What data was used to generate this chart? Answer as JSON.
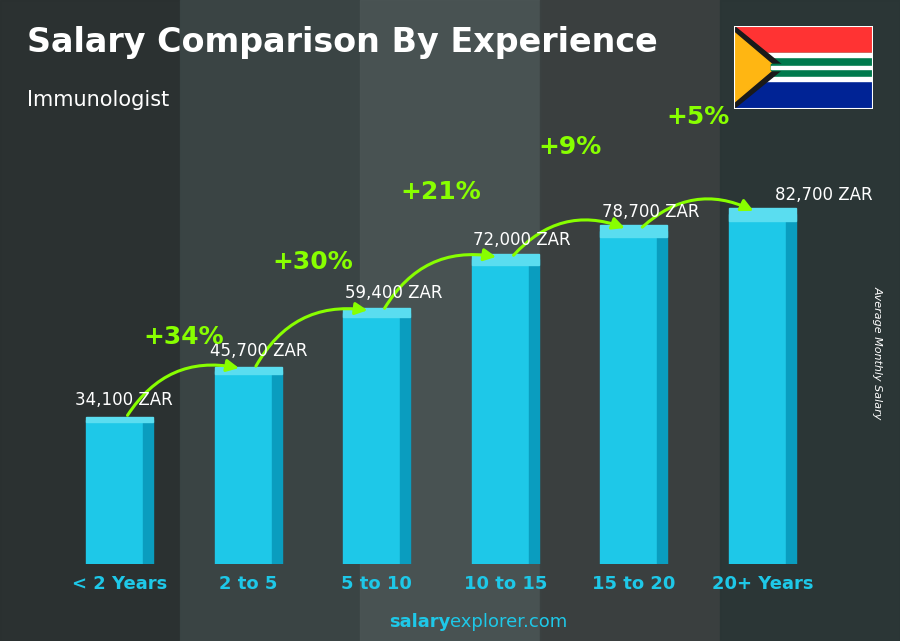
{
  "title": "Salary Comparison By Experience",
  "subtitle": "Immunologist",
  "categories": [
    "< 2 Years",
    "2 to 5",
    "5 to 10",
    "10 to 15",
    "15 to 20",
    "20+ Years"
  ],
  "values": [
    34100,
    45700,
    59400,
    72000,
    78700,
    82700
  ],
  "value_labels": [
    "34,100 ZAR",
    "45,700 ZAR",
    "59,400 ZAR",
    "72,000 ZAR",
    "78,700 ZAR",
    "82,700 ZAR"
  ],
  "pct_labels": [
    "+34%",
    "+30%",
    "+21%",
    "+9%",
    "+5%"
  ],
  "bar_color_main": "#1EC8E8",
  "bar_color_right": "#0A9DBF",
  "bar_color_top": "#5ADDF0",
  "pct_color": "#88FF00",
  "title_color": "#FFFFFF",
  "subtitle_color": "#FFFFFF",
  "value_label_color": "#FFFFFF",
  "xlabel_color": "#1EC8E8",
  "ylabel_text": "Average Monthly Salary",
  "footer_bold": "salary",
  "footer_normal": "explorer.com",
  "ylim": [
    0,
    100000
  ],
  "title_fontsize": 24,
  "subtitle_fontsize": 15,
  "tick_fontsize": 13,
  "value_label_fontsize": 12,
  "pct_fontsize": 18,
  "bar_width": 0.52
}
